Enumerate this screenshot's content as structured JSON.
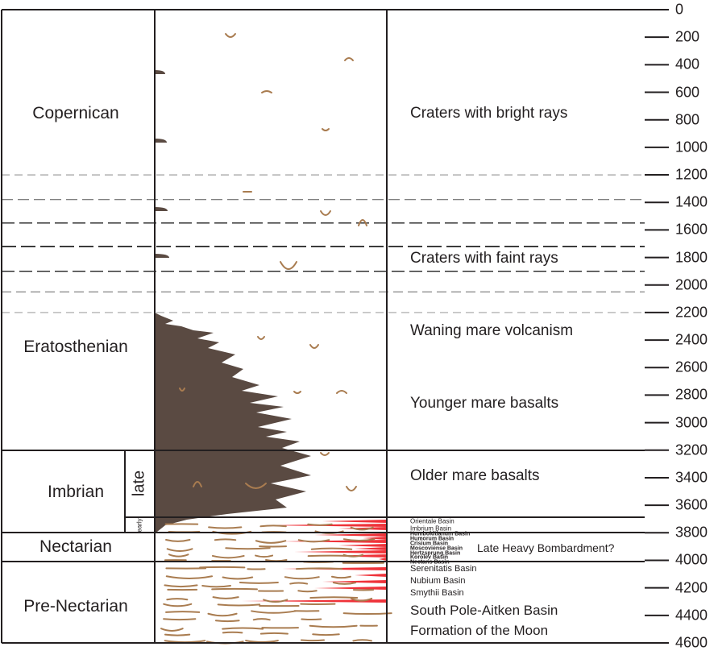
{
  "periods": [
    {
      "name": "Copernican"
    },
    {
      "name": "Eratosthenian"
    },
    {
      "name": "Imbrian"
    },
    {
      "name": "Nectarian"
    },
    {
      "name": "Pre-Nectarian"
    }
  ],
  "subperiods": {
    "late": "late",
    "early": "early"
  },
  "events": {
    "bright_rays": "Craters with bright rays",
    "faint_rays": "Craters with faint rays",
    "waning": "Waning mare volcanism",
    "younger": "Younger mare basalts",
    "older": "Older mare basalts",
    "lhb": "Late Heavy Bombardment?",
    "spa": "South Pole-Aitken Basin",
    "formation": "Formation of the Moon"
  },
  "basins": {
    "orientale": "Orientale Basin",
    "imbrium": "Imbrium Basin",
    "humboldtianum": "Humboldtianum Basin",
    "humorum": "Humorum Basin",
    "crisium": "Crisium Basin",
    "moscoviense": "Moscoviense Basin",
    "hertzsprung": "Hertzsprung Basin",
    "korolev": "Korolev Basin",
    "nectaris": "Nectaris Basin",
    "serenitatis": "Serenitatis Basin",
    "nubium": "Nubium Basin",
    "smythii": "Smythii Basin"
  },
  "axis": {
    "ticks": [
      "0",
      "200",
      "400",
      "600",
      "800",
      "1000",
      "1200",
      "1400",
      "1600",
      "1800",
      "2000",
      "2200",
      "2400",
      "2600",
      "2800",
      "3000",
      "3200",
      "3400",
      "3600",
      "3800",
      "4000",
      "4200",
      "4400",
      "4600"
    ]
  },
  "colors": {
    "mare": "#5a4a42",
    "crater": "#a97c50",
    "basin": "#ed1c24",
    "line": "#231f20"
  }
}
